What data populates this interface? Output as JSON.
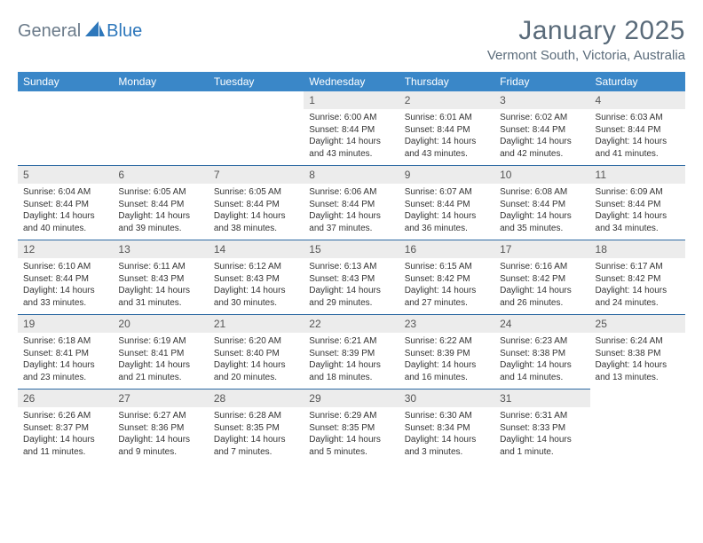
{
  "brand": {
    "part1": "General",
    "part2": "Blue"
  },
  "title": "January 2025",
  "location": "Vermont South, Victoria, Australia",
  "colors": {
    "header_bg": "#3a87c8",
    "header_text": "#ffffff",
    "daynum_bg": "#ececec",
    "daynum_text": "#555555",
    "border": "#2d6aa3",
    "title_text": "#5a6b7a",
    "logo_gray": "#6b7b8a",
    "logo_blue": "#2d77bb"
  },
  "dow": [
    "Sunday",
    "Monday",
    "Tuesday",
    "Wednesday",
    "Thursday",
    "Friday",
    "Saturday"
  ],
  "weeks": [
    [
      null,
      null,
      null,
      {
        "n": "1",
        "sr": "6:00 AM",
        "ss": "8:44 PM",
        "d1": "14 hours",
        "d2": "and 43 minutes."
      },
      {
        "n": "2",
        "sr": "6:01 AM",
        "ss": "8:44 PM",
        "d1": "14 hours",
        "d2": "and 43 minutes."
      },
      {
        "n": "3",
        "sr": "6:02 AM",
        "ss": "8:44 PM",
        "d1": "14 hours",
        "d2": "and 42 minutes."
      },
      {
        "n": "4",
        "sr": "6:03 AM",
        "ss": "8:44 PM",
        "d1": "14 hours",
        "d2": "and 41 minutes."
      }
    ],
    [
      {
        "n": "5",
        "sr": "6:04 AM",
        "ss": "8:44 PM",
        "d1": "14 hours",
        "d2": "and 40 minutes."
      },
      {
        "n": "6",
        "sr": "6:05 AM",
        "ss": "8:44 PM",
        "d1": "14 hours",
        "d2": "and 39 minutes."
      },
      {
        "n": "7",
        "sr": "6:05 AM",
        "ss": "8:44 PM",
        "d1": "14 hours",
        "d2": "and 38 minutes."
      },
      {
        "n": "8",
        "sr": "6:06 AM",
        "ss": "8:44 PM",
        "d1": "14 hours",
        "d2": "and 37 minutes."
      },
      {
        "n": "9",
        "sr": "6:07 AM",
        "ss": "8:44 PM",
        "d1": "14 hours",
        "d2": "and 36 minutes."
      },
      {
        "n": "10",
        "sr": "6:08 AM",
        "ss": "8:44 PM",
        "d1": "14 hours",
        "d2": "and 35 minutes."
      },
      {
        "n": "11",
        "sr": "6:09 AM",
        "ss": "8:44 PM",
        "d1": "14 hours",
        "d2": "and 34 minutes."
      }
    ],
    [
      {
        "n": "12",
        "sr": "6:10 AM",
        "ss": "8:44 PM",
        "d1": "14 hours",
        "d2": "and 33 minutes."
      },
      {
        "n": "13",
        "sr": "6:11 AM",
        "ss": "8:43 PM",
        "d1": "14 hours",
        "d2": "and 31 minutes."
      },
      {
        "n": "14",
        "sr": "6:12 AM",
        "ss": "8:43 PM",
        "d1": "14 hours",
        "d2": "and 30 minutes."
      },
      {
        "n": "15",
        "sr": "6:13 AM",
        "ss": "8:43 PM",
        "d1": "14 hours",
        "d2": "and 29 minutes."
      },
      {
        "n": "16",
        "sr": "6:15 AM",
        "ss": "8:42 PM",
        "d1": "14 hours",
        "d2": "and 27 minutes."
      },
      {
        "n": "17",
        "sr": "6:16 AM",
        "ss": "8:42 PM",
        "d1": "14 hours",
        "d2": "and 26 minutes."
      },
      {
        "n": "18",
        "sr": "6:17 AM",
        "ss": "8:42 PM",
        "d1": "14 hours",
        "d2": "and 24 minutes."
      }
    ],
    [
      {
        "n": "19",
        "sr": "6:18 AM",
        "ss": "8:41 PM",
        "d1": "14 hours",
        "d2": "and 23 minutes."
      },
      {
        "n": "20",
        "sr": "6:19 AM",
        "ss": "8:41 PM",
        "d1": "14 hours",
        "d2": "and 21 minutes."
      },
      {
        "n": "21",
        "sr": "6:20 AM",
        "ss": "8:40 PM",
        "d1": "14 hours",
        "d2": "and 20 minutes."
      },
      {
        "n": "22",
        "sr": "6:21 AM",
        "ss": "8:39 PM",
        "d1": "14 hours",
        "d2": "and 18 minutes."
      },
      {
        "n": "23",
        "sr": "6:22 AM",
        "ss": "8:39 PM",
        "d1": "14 hours",
        "d2": "and 16 minutes."
      },
      {
        "n": "24",
        "sr": "6:23 AM",
        "ss": "8:38 PM",
        "d1": "14 hours",
        "d2": "and 14 minutes."
      },
      {
        "n": "25",
        "sr": "6:24 AM",
        "ss": "8:38 PM",
        "d1": "14 hours",
        "d2": "and 13 minutes."
      }
    ],
    [
      {
        "n": "26",
        "sr": "6:26 AM",
        "ss": "8:37 PM",
        "d1": "14 hours",
        "d2": "and 11 minutes."
      },
      {
        "n": "27",
        "sr": "6:27 AM",
        "ss": "8:36 PM",
        "d1": "14 hours",
        "d2": "and 9 minutes."
      },
      {
        "n": "28",
        "sr": "6:28 AM",
        "ss": "8:35 PM",
        "d1": "14 hours",
        "d2": "and 7 minutes."
      },
      {
        "n": "29",
        "sr": "6:29 AM",
        "ss": "8:35 PM",
        "d1": "14 hours",
        "d2": "and 5 minutes."
      },
      {
        "n": "30",
        "sr": "6:30 AM",
        "ss": "8:34 PM",
        "d1": "14 hours",
        "d2": "and 3 minutes."
      },
      {
        "n": "31",
        "sr": "6:31 AM",
        "ss": "8:33 PM",
        "d1": "14 hours",
        "d2": "and 1 minute."
      },
      null
    ]
  ],
  "labels": {
    "sunrise": "Sunrise:",
    "sunset": "Sunset:",
    "daylight": "Daylight:"
  }
}
